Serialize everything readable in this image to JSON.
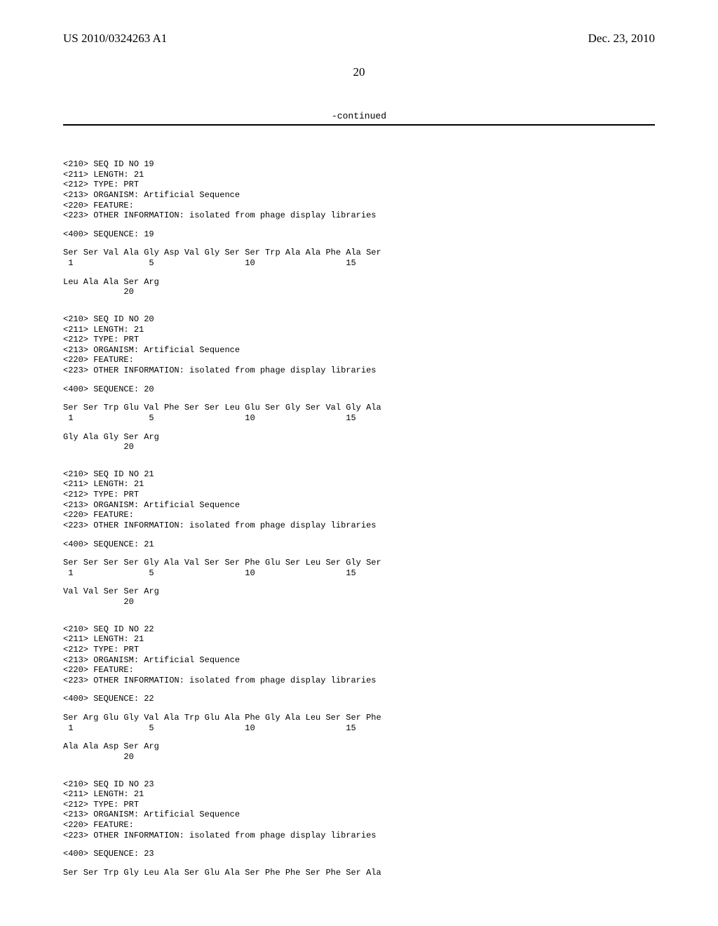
{
  "header": {
    "publicationNumber": "US 2010/0324263 A1",
    "publicationDate": "Dec. 23, 2010"
  },
  "pageNumber": "20",
  "continuedLabel": "-continued",
  "sequences": [
    {
      "meta": [
        "<210> SEQ ID NO 19",
        "<211> LENGTH: 21",
        "<212> TYPE: PRT",
        "<213> ORGANISM: Artificial Sequence",
        "<220> FEATURE:",
        "<223> OTHER INFORMATION: isolated from phage display libraries"
      ],
      "sequenceLabel": "<400> SEQUENCE: 19",
      "rows": [
        {
          "aa": "Ser Ser Val Ala Gly Asp Val Gly Ser Ser Trp Ala Ala Phe Ala Ser",
          "num": " 1               5                  10                  15"
        },
        {
          "aa": "Leu Ala Ala Ser Arg",
          "num": "            20"
        }
      ]
    },
    {
      "meta": [
        "<210> SEQ ID NO 20",
        "<211> LENGTH: 21",
        "<212> TYPE: PRT",
        "<213> ORGANISM: Artificial Sequence",
        "<220> FEATURE:",
        "<223> OTHER INFORMATION: isolated from phage display libraries"
      ],
      "sequenceLabel": "<400> SEQUENCE: 20",
      "rows": [
        {
          "aa": "Ser Ser Trp Glu Val Phe Ser Ser Leu Glu Ser Gly Ser Val Gly Ala",
          "num": " 1               5                  10                  15"
        },
        {
          "aa": "Gly Ala Gly Ser Arg",
          "num": "            20"
        }
      ]
    },
    {
      "meta": [
        "<210> SEQ ID NO 21",
        "<211> LENGTH: 21",
        "<212> TYPE: PRT",
        "<213> ORGANISM: Artificial Sequence",
        "<220> FEATURE:",
        "<223> OTHER INFORMATION: isolated from phage display libraries"
      ],
      "sequenceLabel": "<400> SEQUENCE: 21",
      "rows": [
        {
          "aa": "Ser Ser Ser Ser Gly Ala Val Ser Ser Phe Glu Ser Leu Ser Gly Ser",
          "num": " 1               5                  10                  15"
        },
        {
          "aa": "Val Val Ser Ser Arg",
          "num": "            20"
        }
      ]
    },
    {
      "meta": [
        "<210> SEQ ID NO 22",
        "<211> LENGTH: 21",
        "<212> TYPE: PRT",
        "<213> ORGANISM: Artificial Sequence",
        "<220> FEATURE:",
        "<223> OTHER INFORMATION: isolated from phage display libraries"
      ],
      "sequenceLabel": "<400> SEQUENCE: 22",
      "rows": [
        {
          "aa": "Ser Arg Glu Gly Val Ala Trp Glu Ala Phe Gly Ala Leu Ser Ser Phe",
          "num": " 1               5                  10                  15"
        },
        {
          "aa": "Ala Ala Asp Ser Arg",
          "num": "            20"
        }
      ]
    },
    {
      "meta": [
        "<210> SEQ ID NO 23",
        "<211> LENGTH: 21",
        "<212> TYPE: PRT",
        "<213> ORGANISM: Artificial Sequence",
        "<220> FEATURE:",
        "<223> OTHER INFORMATION: isolated from phage display libraries"
      ],
      "sequenceLabel": "<400> SEQUENCE: 23",
      "rows": [
        {
          "aa": "Ser Ser Trp Gly Leu Ala Ser Glu Ala Ser Phe Phe Ser Phe Ser Ala",
          "num": ""
        }
      ]
    }
  ]
}
